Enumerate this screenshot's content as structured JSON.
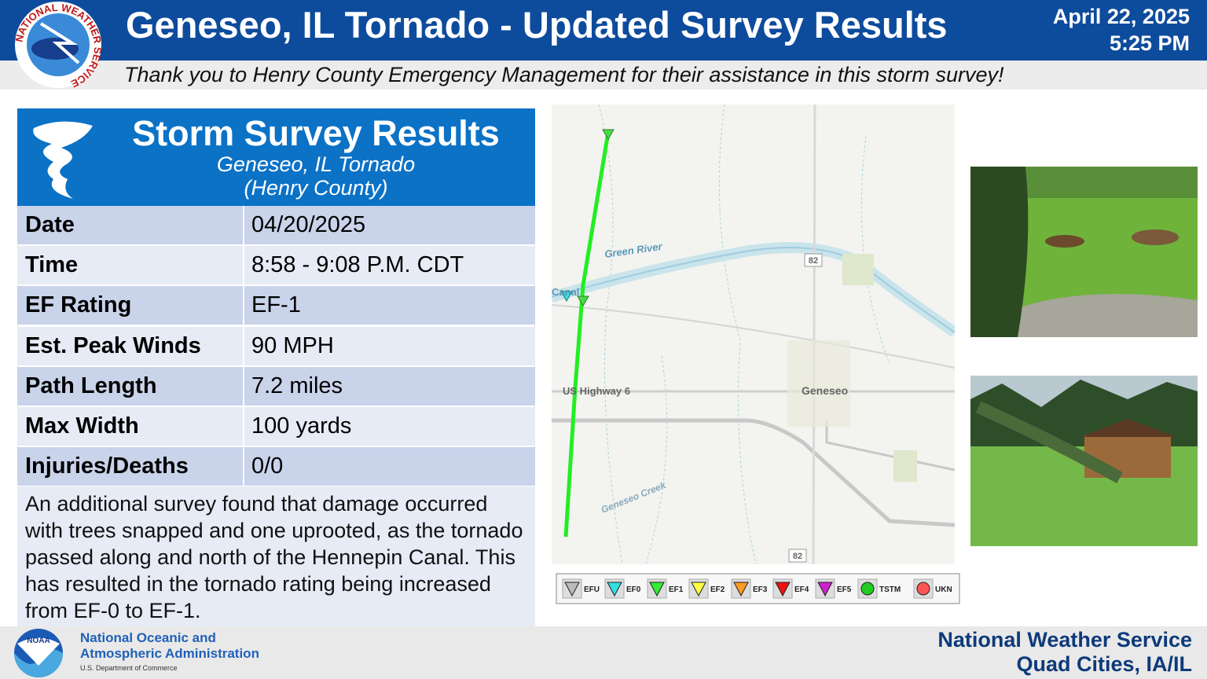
{
  "header": {
    "title": "Geneseo, IL Tornado - Updated Survey Results",
    "date": "April 22, 2025",
    "time": "5:25 PM",
    "subtitle": "Thank you to Henry County Emergency Management for their assistance in this storm survey!",
    "logo_text": "NATIONAL WEATHER SERVICE"
  },
  "panel": {
    "title": "Storm Survey Results",
    "subtitle_line1": "Geneseo, IL Tornado",
    "subtitle_line2": "(Henry County)",
    "rows": [
      [
        "Date",
        "04/20/2025"
      ],
      [
        "Time",
        "8:58 - 9:08 P.M. CDT"
      ],
      [
        "EF Rating",
        "EF-1"
      ],
      [
        "Est. Peak Winds",
        "90 MPH"
      ],
      [
        "Path Length",
        "7.2 miles"
      ],
      [
        "Max Width",
        "100 yards"
      ],
      [
        "Injuries/Deaths",
        "0/0"
      ]
    ],
    "note": "An additional survey found that damage occurred with trees snapped and one uprooted, as the tornado passed along and north of the Hennepin Canal. This has resulted in the tornado rating being increased from EF-0 to EF-1."
  },
  "map": {
    "labels": {
      "river": "Green River",
      "canal": "Canal",
      "route_north": "82",
      "highway": "US Highway 6",
      "town": "Geneseo",
      "creek": "Geneseo Creek",
      "route_south": "82"
    },
    "legend": [
      "EFU",
      "EF0",
      "EF1",
      "EF2",
      "EF3",
      "EF4",
      "EF5",
      "TSTM",
      "UKN"
    ]
  },
  "footer": {
    "noaa_logo": "NOAA",
    "agency_line1": "National Oceanic and",
    "agency_line2": "Atmospheric Administration",
    "department": "U.S. Department of Commerce",
    "office_line1": "National Weather Service",
    "office_line2": "Quad Cities, IA/IL"
  }
}
